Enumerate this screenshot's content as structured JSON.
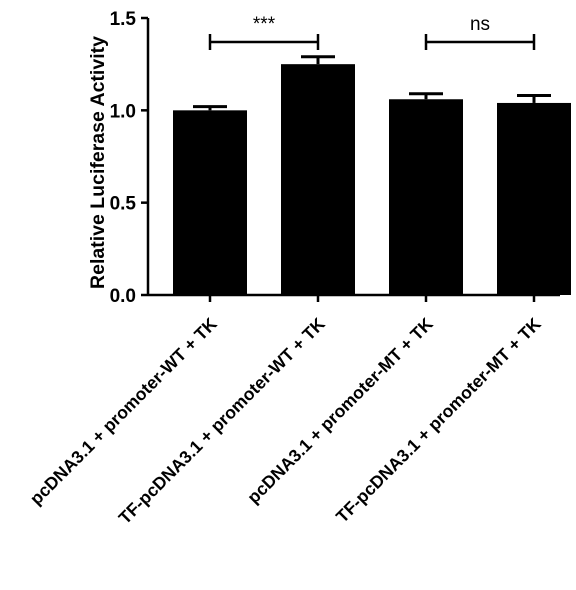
{
  "chart_data": {
    "type": "bar",
    "title": "",
    "xlabel": "",
    "ylabel": "Relative Luciferase Activity",
    "ylim": [
      0,
      1.5
    ],
    "yticks": [
      "0.0",
      "0.5",
      "1.0",
      "1.5"
    ],
    "grid": false,
    "legend": "none",
    "bar_color": "#000000",
    "categories": [
      "pcDNA3.1 + promoter-WT + TK",
      "TF-pcDNA3.1 + promoter-WT + TK",
      "pcDNA3.1 + promoter-MT + TK",
      "TF-pcDNA3.1 + promoter-MT + TK"
    ],
    "values": [
      1.0,
      1.25,
      1.06,
      1.04
    ],
    "errors": [
      0.02,
      0.04,
      0.03,
      0.04
    ],
    "significance": [
      {
        "from": 0,
        "to": 1,
        "y": 1.37,
        "label": "***"
      },
      {
        "from": 2,
        "to": 3,
        "y": 1.37,
        "label": "ns"
      }
    ]
  }
}
